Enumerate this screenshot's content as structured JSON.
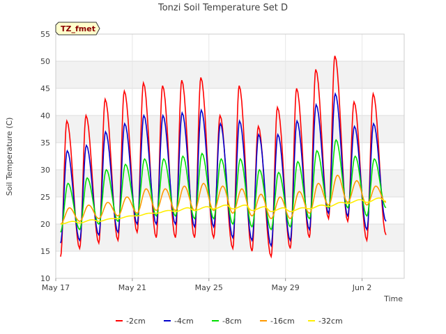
{
  "chart_data": {
    "type": "line",
    "title": "Tonzi Soil Temperature Set D",
    "xlabel": "Time",
    "ylabel": "Soil Temperature (C)",
    "badge": "TZ_fmet",
    "xlim": [
      0,
      18.2
    ],
    "ylim": [
      10,
      55
    ],
    "yticks": [
      10,
      15,
      20,
      25,
      30,
      35,
      40,
      45,
      50,
      55
    ],
    "xticks": [
      {
        "day": 0,
        "label": "May 17"
      },
      {
        "day": 4,
        "label": "May 21"
      },
      {
        "day": 8,
        "label": "May 25"
      },
      {
        "day": 12,
        "label": "May 29"
      },
      {
        "day": 16,
        "label": "Jun 2"
      }
    ],
    "grid": true,
    "legend_position": "bottom",
    "series": [
      {
        "name": "-2cm",
        "color": "#ff0000",
        "daily_max": [
          39,
          40,
          43,
          44.5,
          46,
          45.5,
          46.5,
          47,
          40,
          45.5,
          38,
          41.5,
          45,
          48.5,
          51,
          42.5,
          44
        ],
        "daily_min": [
          14,
          15.5,
          16.5,
          17,
          18.5,
          17.5,
          17.5,
          17.5,
          17.5,
          15.5,
          15,
          14,
          15.5,
          17.5,
          21,
          20.5,
          17,
          18
        ]
      },
      {
        "name": "-4cm",
        "color": "#0000cc",
        "daily_max": [
          33.5,
          34.5,
          37,
          38.5,
          40,
          40,
          40.5,
          41,
          38.5,
          39,
          36.5,
          36.5,
          39,
          42,
          44,
          38,
          38.5
        ],
        "daily_min": [
          16.5,
          17,
          18,
          18.5,
          20,
          20,
          20,
          19.5,
          19.5,
          17.5,
          17,
          16,
          17,
          19,
          22,
          21.5,
          19,
          20.5
        ]
      },
      {
        "name": "-8cm",
        "color": "#00dd00",
        "daily_max": [
          27.5,
          28.5,
          30,
          31,
          32,
          32,
          32.5,
          33,
          32,
          32,
          30,
          29.5,
          31.5,
          33.5,
          35.5,
          32.5,
          32
        ],
        "daily_min": [
          18.5,
          19,
          20,
          20.5,
          21.5,
          21.5,
          21.5,
          21,
          21,
          20,
          19.5,
          19,
          19.5,
          21,
          23,
          23,
          21.5,
          23
        ]
      },
      {
        "name": "-16cm",
        "color": "#ff9900",
        "daily_max": [
          23,
          23.5,
          24,
          25,
          26.5,
          26.5,
          27,
          27.5,
          27,
          26.5,
          25.5,
          25,
          26,
          27.5,
          29,
          28,
          27
        ],
        "daily_min": [
          20,
          20.5,
          21,
          21.5,
          22,
          22.5,
          22.5,
          22.5,
          22.5,
          22,
          21.5,
          21,
          21,
          22,
          23.5,
          24,
          23.5,
          24
        ]
      },
      {
        "name": "-32cm",
        "color": "#ffee00",
        "daily_max": [
          20.5,
          20.8,
          21,
          21.5,
          22,
          22.5,
          23,
          23.2,
          23.5,
          23.5,
          23.2,
          23,
          23,
          23.5,
          24,
          24.5,
          24.8
        ],
        "daily_min": [
          20,
          20.2,
          20.5,
          21,
          21.5,
          22,
          22.3,
          22.5,
          22.8,
          22.8,
          22.5,
          22.3,
          22.3,
          22.8,
          23.2,
          23.8,
          24,
          24.2
        ]
      }
    ]
  }
}
